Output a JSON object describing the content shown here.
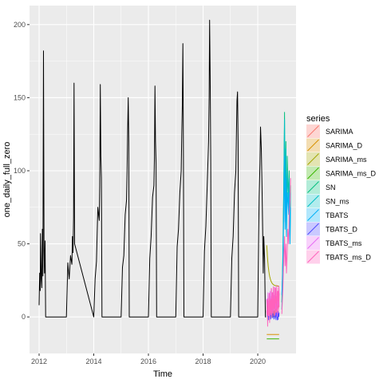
{
  "chart_data": {
    "type": "line",
    "xlabel": "Time",
    "ylabel": "one_daily_full_zero",
    "xlim": [
      2011.65,
      2021.4
    ],
    "ylim": [
      -25,
      213
    ],
    "x_ticks": [
      2012,
      2014,
      2016,
      2018,
      2020
    ],
    "x_tick_labels": [
      "2012",
      "2014",
      "2016",
      "2018",
      "2020"
    ],
    "y_ticks": [
      0,
      50,
      100,
      150,
      200
    ],
    "y_tick_labels": [
      "0",
      "50",
      "100",
      "150",
      "200"
    ],
    "grid": true,
    "legend": {
      "title": "series",
      "position": "right",
      "entries": [
        "SARIMA",
        "SARIMA_D",
        "SARIMA_ms",
        "SARIMA_ms_D",
        "SN",
        "SN_ms",
        "TBATS",
        "TBATS_D",
        "TBATS_ms",
        "TBATS_ms_D"
      ]
    },
    "historical": {
      "color": "#000000",
      "x": [
        2012.0,
        2012.02,
        2012.04,
        2012.05,
        2012.08,
        2012.1,
        2012.12,
        2012.14,
        2012.16,
        2012.18,
        2012.2,
        2012.22,
        2012.24,
        2012.25,
        2012.28,
        2012.3,
        2012.32,
        2012.34,
        2012.36,
        2013.0,
        2013.05,
        2013.1,
        2013.15,
        2013.2,
        2013.22,
        2013.24,
        2013.26,
        2013.28,
        2013.3,
        2014.0,
        2014.05,
        2014.1,
        2014.15,
        2014.2,
        2014.22,
        2014.24,
        2014.26,
        2014.28,
        2014.3,
        2015.0,
        2015.05,
        2015.1,
        2015.15,
        2015.2,
        2015.22,
        2015.24,
        2015.26,
        2015.28,
        2015.3,
        2016.0,
        2016.05,
        2016.1,
        2016.15,
        2016.2,
        2016.22,
        2016.24,
        2016.26,
        2016.28,
        2016.3,
        2017.0,
        2017.05,
        2017.1,
        2017.15,
        2017.2,
        2017.22,
        2017.24,
        2017.26,
        2017.28,
        2017.3,
        2018.0,
        2018.05,
        2018.1,
        2018.15,
        2018.2,
        2018.22,
        2018.24,
        2018.26,
        2018.28,
        2018.3,
        2019.0,
        2019.05,
        2019.1,
        2019.15,
        2019.2,
        2019.22,
        2019.24,
        2019.26,
        2019.28,
        2019.3,
        2020.0,
        2020.03,
        2020.05,
        2020.08,
        2020.1,
        2020.13,
        2020.15,
        2020.18,
        2020.2,
        2020.22,
        2020.25,
        2020.28,
        2020.3
      ],
      "y": [
        8,
        30,
        18,
        57,
        26,
        20,
        60,
        28,
        182,
        45,
        30,
        52,
        0,
        0,
        0,
        0,
        0,
        0,
        0,
        0,
        37,
        26,
        42,
        36,
        55,
        44,
        68,
        160,
        50,
        0,
        26,
        38,
        75,
        66,
        90,
        159,
        110,
        95,
        0,
        0,
        34,
        42,
        70,
        80,
        100,
        128,
        150,
        120,
        0,
        0,
        40,
        55,
        82,
        90,
        110,
        158,
        120,
        105,
        0,
        0,
        48,
        60,
        85,
        100,
        125,
        145,
        187,
        110,
        0,
        0,
        45,
        62,
        90,
        120,
        150,
        203,
        165,
        110,
        0,
        0,
        40,
        55,
        85,
        100,
        125,
        148,
        154,
        120,
        0,
        0,
        55,
        82,
        105,
        130,
        115,
        95,
        60,
        30,
        55,
        40,
        0,
        0
      ]
    },
    "series": [
      {
        "name": "SARIMA",
        "color": "#F8766D"
      },
      {
        "name": "SARIMA_D",
        "color": "#D89000"
      },
      {
        "name": "SARIMA_ms",
        "color": "#A3A500"
      },
      {
        "name": "SARIMA_ms_D",
        "color": "#39B600"
      },
      {
        "name": "SN",
        "color": "#00BF7D"
      },
      {
        "name": "SN_ms",
        "color": "#00BFC4"
      },
      {
        "name": "TBATS",
        "color": "#00B0F6"
      },
      {
        "name": "TBATS_D",
        "color": "#4E4BFF"
      },
      {
        "name": "TBATS_ms",
        "color": "#E76BF3"
      },
      {
        "name": "TBATS_ms_D",
        "color": "#FF62BC"
      }
    ]
  }
}
